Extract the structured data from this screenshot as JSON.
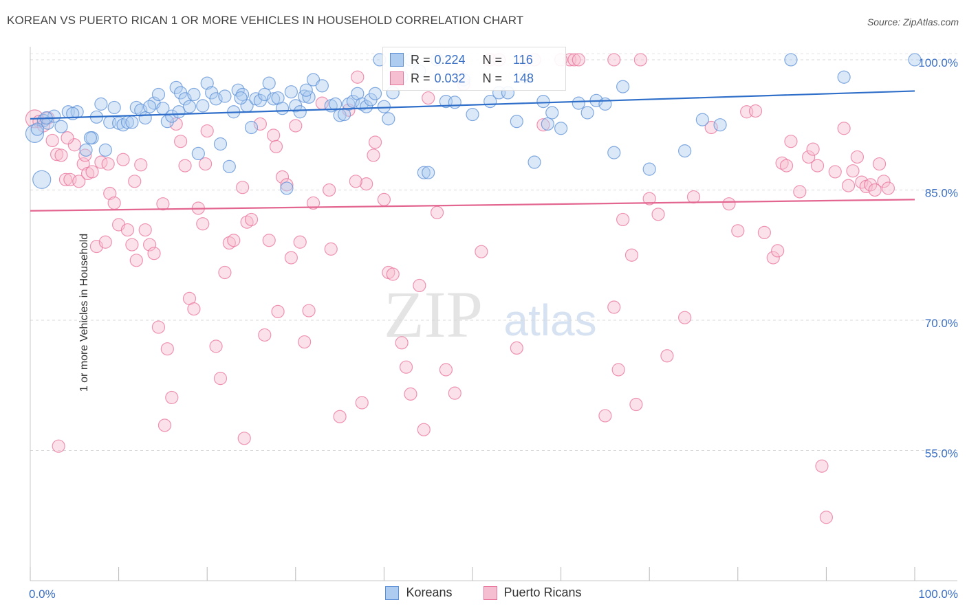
{
  "header": {
    "title": "KOREAN VS PUERTO RICAN 1 OR MORE VEHICLES IN HOUSEHOLD CORRELATION CHART",
    "source": "Source: ZipAtlas.com"
  },
  "colors": {
    "koreans": "#5b8fd6",
    "koreans_fill": "#aecbf0",
    "puerto_ricans": "#e8729a",
    "puerto_ricans_fill": "#f6bfd1",
    "axis_label": "#3a6fc4"
  },
  "stats": {
    "koreans": {
      "r_label": "R =",
      "r": "0.224",
      "n_label": "N =",
      "n": "116"
    },
    "puerto_ricans": {
      "r_label": "R =",
      "r": "0.032",
      "n_label": "N =",
      "n": "148"
    }
  },
  "legend": {
    "koreans": "Koreans",
    "puerto_ricans": "Puerto Ricans"
  },
  "chart_data": {
    "type": "scatter",
    "ylabel": "1 or more Vehicles in Household",
    "xlim": [
      0,
      100
    ],
    "ylim": [
      40,
      101.5
    ],
    "x_tick_labels": [
      "0.0%",
      "100.0%"
    ],
    "y_ticks": [
      55,
      70,
      85,
      100
    ],
    "y_tick_labels": [
      "55.0%",
      "70.0%",
      "85.0%",
      "100.0%"
    ],
    "grid": true,
    "legend_position": "bottom-center",
    "series": [
      {
        "name": "Koreans",
        "trend": {
          "x": [
            0,
            100
          ],
          "y": [
            93.2,
            96.4
          ]
        },
        "points": [
          [
            0.5,
            91.5
          ],
          [
            1.3,
            86.2
          ],
          [
            1.5,
            93.0
          ],
          [
            2.0,
            92.7
          ],
          [
            2.7,
            93.5
          ],
          [
            3.5,
            92.3
          ],
          [
            4.3,
            94.0
          ],
          [
            5.3,
            94.0
          ],
          [
            6.3,
            89.6
          ],
          [
            7.0,
            91.0
          ],
          [
            7.5,
            93.4
          ],
          [
            8.0,
            94.9
          ],
          [
            8.5,
            89.6
          ],
          [
            9.0,
            92.8
          ],
          [
            9.5,
            94.5
          ],
          [
            10.0,
            92.7
          ],
          [
            10.5,
            92.5
          ],
          [
            11.0,
            92.8
          ],
          [
            11.5,
            92.8
          ],
          [
            12.0,
            94.5
          ],
          [
            12.5,
            94.2
          ],
          [
            13.0,
            93.3
          ],
          [
            14.0,
            95.0
          ],
          [
            14.5,
            96.0
          ],
          [
            15.0,
            94.4
          ],
          [
            15.5,
            92.9
          ],
          [
            16.0,
            93.5
          ],
          [
            16.5,
            96.8
          ],
          [
            17.0,
            96.2
          ],
          [
            17.5,
            95.5
          ],
          [
            18.0,
            94.6
          ],
          [
            18.5,
            96.0
          ],
          [
            19.0,
            89.2
          ],
          [
            19.5,
            94.7
          ],
          [
            20.0,
            97.3
          ],
          [
            20.5,
            96.2
          ],
          [
            21.0,
            95.5
          ],
          [
            21.5,
            90.3
          ],
          [
            22.0,
            95.8
          ],
          [
            22.5,
            87.7
          ],
          [
            23.0,
            94.0
          ],
          [
            23.5,
            96.5
          ],
          [
            24.0,
            96.0
          ],
          [
            24.5,
            94.7
          ],
          [
            25.0,
            92.2
          ],
          [
            25.5,
            95.5
          ],
          [
            26.0,
            95.3
          ],
          [
            26.5,
            96.0
          ],
          [
            27.0,
            97.3
          ],
          [
            27.5,
            95.5
          ],
          [
            28.0,
            95.6
          ],
          [
            28.5,
            94.4
          ],
          [
            29.0,
            85.2
          ],
          [
            29.5,
            96.3
          ],
          [
            30.0,
            94.7
          ],
          [
            30.5,
            94.0
          ],
          [
            31.0,
            95.8
          ],
          [
            31.5,
            95.7
          ],
          [
            32.0,
            97.7
          ],
          [
            33.0,
            97.0
          ],
          [
            34.0,
            94.7
          ],
          [
            34.5,
            94.9
          ],
          [
            35.0,
            93.6
          ],
          [
            35.5,
            93.7
          ],
          [
            36.0,
            94.9
          ],
          [
            36.5,
            95.2
          ],
          [
            37.0,
            96.1
          ],
          [
            37.5,
            94.9
          ],
          [
            38.0,
            94.6
          ],
          [
            38.5,
            95.4
          ],
          [
            39.0,
            96.1
          ],
          [
            39.5,
            100.0
          ],
          [
            40.0,
            94.6
          ],
          [
            40.5,
            93.2
          ],
          [
            41.0,
            96.2
          ],
          [
            42.0,
            98.0
          ],
          [
            43.0,
            100.0
          ],
          [
            44.0,
            98.7
          ],
          [
            44.5,
            87.0
          ],
          [
            45.0,
            87.0
          ],
          [
            46.0,
            100.0
          ],
          [
            47.0,
            95.2
          ],
          [
            48.0,
            95.1
          ],
          [
            49.0,
            97.7
          ],
          [
            50.0,
            93.7
          ],
          [
            52.0,
            95.2
          ],
          [
            53.0,
            96.2
          ],
          [
            54.0,
            96.2
          ],
          [
            55.0,
            92.9
          ],
          [
            56.0,
            98.0
          ],
          [
            57.0,
            88.2
          ],
          [
            58.0,
            95.2
          ],
          [
            58.5,
            92.6
          ],
          [
            59.0,
            93.9
          ],
          [
            60.0,
            92.1
          ],
          [
            62.0,
            95.0
          ],
          [
            63.0,
            93.9
          ],
          [
            64.0,
            95.3
          ],
          [
            65.0,
            94.9
          ],
          [
            66.0,
            89.3
          ],
          [
            67.0,
            96.9
          ],
          [
            70.0,
            87.4
          ],
          [
            74.0,
            89.5
          ],
          [
            76.0,
            93.1
          ],
          [
            78.0,
            92.5
          ],
          [
            86.0,
            100.0
          ],
          [
            92.0,
            98.0
          ],
          [
            100.0,
            100.0
          ],
          [
            0.8,
            92.0
          ],
          [
            1.8,
            93.3
          ],
          [
            4.8,
            93.8
          ],
          [
            6.8,
            91.0
          ],
          [
            13.5,
            94.6
          ],
          [
            16.8,
            94.0
          ],
          [
            23.8,
            95.6
          ],
          [
            31.2,
            96.5
          ]
        ]
      },
      {
        "name": "Puerto Ricans",
        "trend": {
          "x": [
            0,
            100
          ],
          "y": [
            82.6,
            83.9
          ]
        },
        "points": [
          [
            0.5,
            93.2
          ],
          [
            1.0,
            92.9
          ],
          [
            1.5,
            92.4
          ],
          [
            2.0,
            93.3
          ],
          [
            2.5,
            90.7
          ],
          [
            3.0,
            89.1
          ],
          [
            3.5,
            89.0
          ],
          [
            4.0,
            86.2
          ],
          [
            4.5,
            86.2
          ],
          [
            5.0,
            90.2
          ],
          [
            5.5,
            86.0
          ],
          [
            6.0,
            88.0
          ],
          [
            6.5,
            86.9
          ],
          [
            7.0,
            87.1
          ],
          [
            7.5,
            78.5
          ],
          [
            8.0,
            88.2
          ],
          [
            8.5,
            79.0
          ],
          [
            9.0,
            84.6
          ],
          [
            9.5,
            83.5
          ],
          [
            10.0,
            81.0
          ],
          [
            10.5,
            88.5
          ],
          [
            11.0,
            80.4
          ],
          [
            11.5,
            78.7
          ],
          [
            12.0,
            76.9
          ],
          [
            12.5,
            87.9
          ],
          [
            13.0,
            80.4
          ],
          [
            13.5,
            78.7
          ],
          [
            14.0,
            77.7
          ],
          [
            14.5,
            69.2
          ],
          [
            15.0,
            83.4
          ],
          [
            15.5,
            66.7
          ],
          [
            16.0,
            61.1
          ],
          [
            16.5,
            92.6
          ],
          [
            17.0,
            90.6
          ],
          [
            17.5,
            87.8
          ],
          [
            18.0,
            72.5
          ],
          [
            18.5,
            71.3
          ],
          [
            19.0,
            82.9
          ],
          [
            19.5,
            81.1
          ],
          [
            20.0,
            91.8
          ],
          [
            21.0,
            67.0
          ],
          [
            21.5,
            63.3
          ],
          [
            22.0,
            75.5
          ],
          [
            22.5,
            78.9
          ],
          [
            23.0,
            79.2
          ],
          [
            24.0,
            85.3
          ],
          [
            24.5,
            81.3
          ],
          [
            25.0,
            81.6
          ],
          [
            26.0,
            92.6
          ],
          [
            26.5,
            68.3
          ],
          [
            27.0,
            79.2
          ],
          [
            27.5,
            91.3
          ],
          [
            28.0,
            71.0
          ],
          [
            28.5,
            86.5
          ],
          [
            29.0,
            85.6
          ],
          [
            29.5,
            77.2
          ],
          [
            30.0,
            92.4
          ],
          [
            30.5,
            79.0
          ],
          [
            31.0,
            67.5
          ],
          [
            31.5,
            71.1
          ],
          [
            32.0,
            83.5
          ],
          [
            33.0,
            95.0
          ],
          [
            34.0,
            78.2
          ],
          [
            35.0,
            58.9
          ],
          [
            36.0,
            94.2
          ],
          [
            37.0,
            98.0
          ],
          [
            38.0,
            85.7
          ],
          [
            39.0,
            90.5
          ],
          [
            40.0,
            83.9
          ],
          [
            40.5,
            75.5
          ],
          [
            41.0,
            75.3
          ],
          [
            42.0,
            67.4
          ],
          [
            42.5,
            64.6
          ],
          [
            43.0,
            61.5
          ],
          [
            44.0,
            74.0
          ],
          [
            44.5,
            57.4
          ],
          [
            45.0,
            95.6
          ],
          [
            46.0,
            82.4
          ],
          [
            47.0,
            64.3
          ],
          [
            48.0,
            61.6
          ],
          [
            49.0,
            97.2
          ],
          [
            51.0,
            77.9
          ],
          [
            55.0,
            66.8
          ],
          [
            58.0,
            92.5
          ],
          [
            61.0,
            100.0
          ],
          [
            61.5,
            100.0
          ],
          [
            62.0,
            100.0
          ],
          [
            65.0,
            59.0
          ],
          [
            66.0,
            71.5
          ],
          [
            66.5,
            64.3
          ],
          [
            67.0,
            81.6
          ],
          [
            68.0,
            77.5
          ],
          [
            68.5,
            60.3
          ],
          [
            69.0,
            100.0
          ],
          [
            70.0,
            84.0
          ],
          [
            71.0,
            82.2
          ],
          [
            72.0,
            65.9
          ],
          [
            74.0,
            70.3
          ],
          [
            75.0,
            84.2
          ],
          [
            77.0,
            92.2
          ],
          [
            79.0,
            83.4
          ],
          [
            80.0,
            80.3
          ],
          [
            81.0,
            94.0
          ],
          [
            82.0,
            94.1
          ],
          [
            83.0,
            80.1
          ],
          [
            84.0,
            77.2
          ],
          [
            84.5,
            78.0
          ],
          [
            85.0,
            88.1
          ],
          [
            85.5,
            87.8
          ],
          [
            86.0,
            90.6
          ],
          [
            87.0,
            84.8
          ],
          [
            88.0,
            88.8
          ],
          [
            88.5,
            89.7
          ],
          [
            89.0,
            87.8
          ],
          [
            89.5,
            53.2
          ],
          [
            90.0,
            47.3
          ],
          [
            91.0,
            87.1
          ],
          [
            92.0,
            92.1
          ],
          [
            92.5,
            85.5
          ],
          [
            93.0,
            87.2
          ],
          [
            93.5,
            88.8
          ],
          [
            94.0,
            85.9
          ],
          [
            94.5,
            85.4
          ],
          [
            95.0,
            85.6
          ],
          [
            95.5,
            85.0
          ],
          [
            96.0,
            88.0
          ],
          [
            96.5,
            86.0
          ],
          [
            97.0,
            85.2
          ],
          [
            3.2,
            55.5
          ],
          [
            15.2,
            57.9
          ],
          [
            24.2,
            56.4
          ],
          [
            37.5,
            60.5
          ],
          [
            48.5,
            98.0
          ],
          [
            52.0,
            100.0
          ],
          [
            53.0,
            100.0
          ],
          [
            56.0,
            100.0
          ],
          [
            57.0,
            100.0
          ],
          [
            60.0,
            100.0
          ],
          [
            66.0,
            100.0
          ],
          [
            4.2,
            91.0
          ],
          [
            6.2,
            89.0
          ],
          [
            8.8,
            88.0
          ],
          [
            11.8,
            86.0
          ],
          [
            19.8,
            88.0
          ],
          [
            27.8,
            90.0
          ],
          [
            33.8,
            85.0
          ],
          [
            36.8,
            86.0
          ],
          [
            38.8,
            89.0
          ]
        ]
      }
    ]
  }
}
